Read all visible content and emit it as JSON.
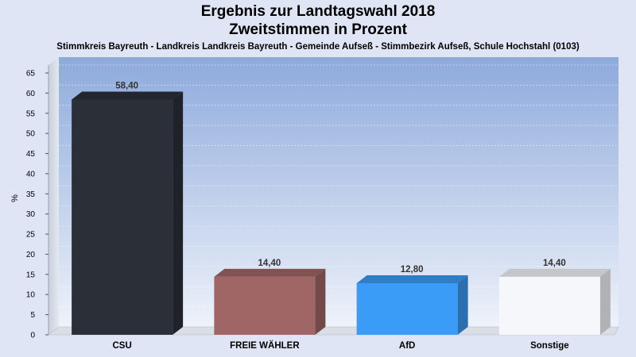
{
  "chart_data": {
    "type": "bar",
    "title_line1": "Ergebnis zur Landtagswahl 2018",
    "title_line2": "Zweitstimmen in Prozent",
    "subtitle": "Stimmkreis Bayreuth - Landkreis Landkreis Bayreuth - Gemeinde Aufseß - Stimmbezirk Aufseß, Schule Hochstahl (0103)",
    "ylabel": "%",
    "xlabel": "",
    "ylim": [
      0,
      65
    ],
    "yticks": [
      0,
      5,
      10,
      15,
      20,
      25,
      30,
      35,
      40,
      45,
      50,
      55,
      60,
      65
    ],
    "grid": true,
    "categories": [
      "CSU",
      "FREIE WÄHLER",
      "AfD",
      "Sonstige"
    ],
    "values": [
      58.4,
      14.4,
      12.8,
      14.4
    ],
    "value_labels": [
      "58,40",
      "14,40",
      "12,80",
      "14,40"
    ],
    "colors": [
      "#2b2f38",
      "#a06666",
      "#3a9cf6",
      "#f6f7fa"
    ]
  }
}
